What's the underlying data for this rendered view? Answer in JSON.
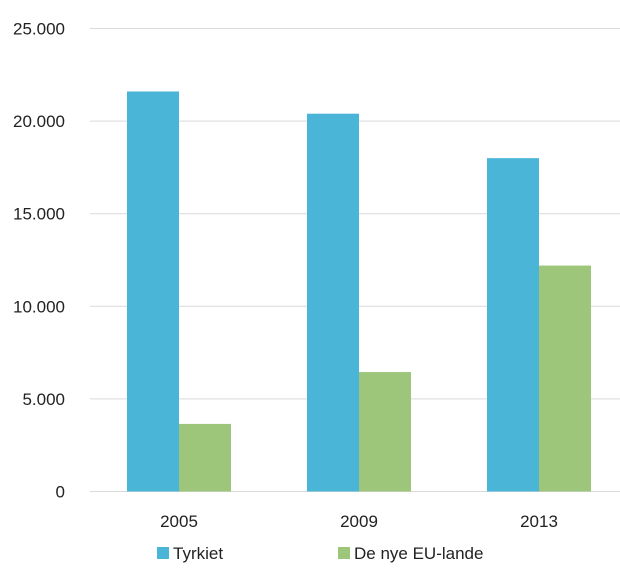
{
  "chart_data": {
    "type": "bar",
    "categories": [
      "2005",
      "2009",
      "2013"
    ],
    "series": [
      {
        "name": "Tyrkiet",
        "color": "#4bb5d8",
        "values": [
          21600,
          20400,
          18000
        ]
      },
      {
        "name": "De nye EU-lande",
        "color": "#9dc67a",
        "values": [
          3650,
          6450,
          12200
        ]
      }
    ],
    "y_ticks": [
      "0",
      "5.000",
      "10.000",
      "15.000",
      "20.000",
      "25.000"
    ],
    "ylim": [
      0,
      25000
    ],
    "grid": true,
    "gridline_color": "#d9d9d9",
    "legend_position": "bottom-left"
  }
}
